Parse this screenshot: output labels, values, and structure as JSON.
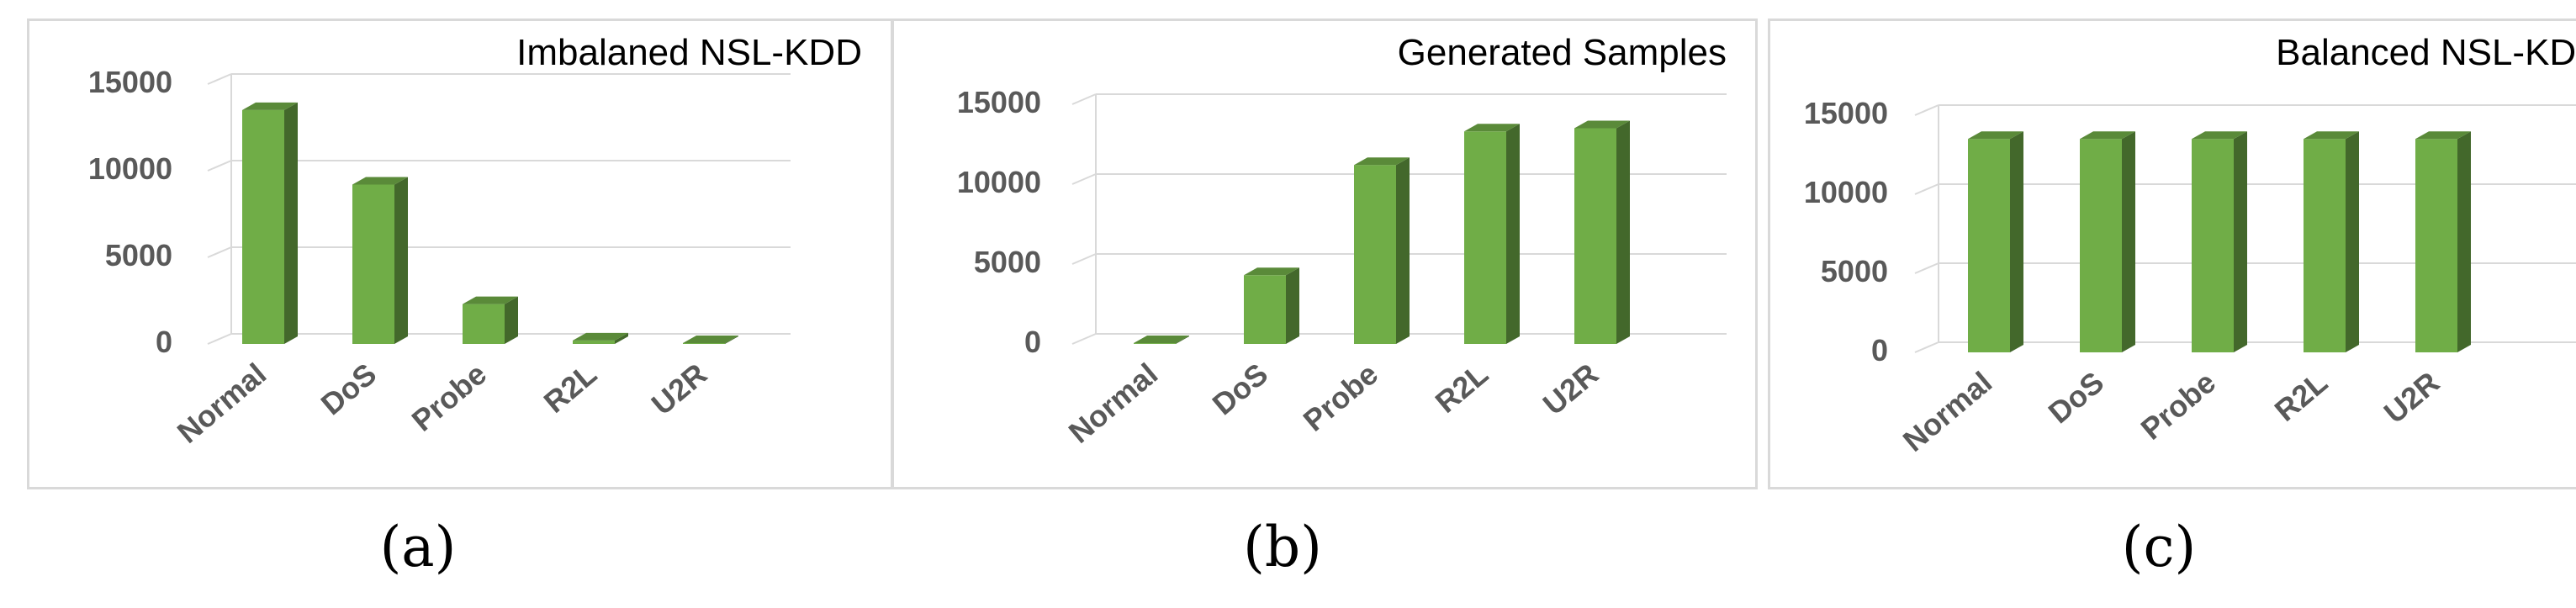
{
  "chart_data": [
    {
      "type": "bar",
      "title": "Imbalaned NSL-KDD",
      "caption": "(a)",
      "categories": [
        "Normal",
        "DoS",
        "Probe",
        "R2L",
        "U2R"
      ],
      "values": [
        13500,
        9200,
        2300,
        200,
        50
      ],
      "yticks": [
        "0",
        "5000",
        "10000",
        "15000"
      ],
      "ylim": [
        0,
        15000
      ],
      "grid": true,
      "bar_color": "#70ad47"
    },
    {
      "type": "bar",
      "title": "Generated Samples",
      "caption": "(b)",
      "categories": [
        "Normal",
        "DoS",
        "Probe",
        "R2L",
        "U2R"
      ],
      "values": [
        50,
        4300,
        11200,
        13300,
        13500
      ],
      "yticks": [
        "0",
        "5000",
        "10000",
        "15000"
      ],
      "ylim": [
        0,
        15000
      ],
      "grid": true,
      "bar_color": "#70ad47"
    },
    {
      "type": "bar",
      "title": "Balanced NSL-KDD",
      "caption": "(c)",
      "categories": [
        "Normal",
        "DoS",
        "Probe",
        "R2L",
        "U2R"
      ],
      "values": [
        13500,
        13500,
        13500,
        13500,
        13500
      ],
      "yticks": [
        "0",
        "5000",
        "10000",
        "15000"
      ],
      "ylim": [
        0,
        15000
      ],
      "grid": true,
      "bar_color": "#70ad47"
    }
  ]
}
